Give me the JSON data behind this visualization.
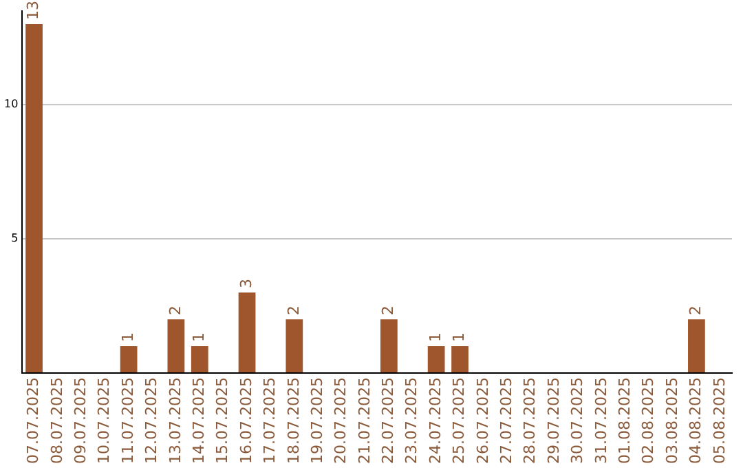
{
  "chart_data": {
    "type": "bar",
    "categories": [
      "07.07.2025",
      "08.07.2025",
      "09.07.2025",
      "10.07.2025",
      "11.07.2025",
      "12.07.2025",
      "13.07.2025",
      "14.07.2025",
      "15.07.2025",
      "16.07.2025",
      "17.07.2025",
      "18.07.2025",
      "19.07.2025",
      "20.07.2025",
      "21.07.2025",
      "22.07.2025",
      "23.07.2025",
      "24.07.2025",
      "25.07.2025",
      "26.07.2025",
      "27.07.2025",
      "28.07.2025",
      "29.07.2025",
      "30.07.2025",
      "31.07.2025",
      "01.08.2025",
      "02.08.2025",
      "03.08.2025",
      "04.08.2025",
      "05.08.2025"
    ],
    "values": [
      13,
      null,
      null,
      null,
      1,
      null,
      2,
      1,
      null,
      3,
      null,
      2,
      null,
      null,
      null,
      2,
      null,
      1,
      1,
      null,
      null,
      null,
      null,
      null,
      null,
      null,
      null,
      null,
      2,
      null
    ],
    "color": "#a0562c",
    "ylim": [
      0,
      13.5
    ],
    "yticks": [
      {
        "value": 0,
        "label": null
      },
      5,
      10
    ],
    "grid": "y",
    "data_labels": true,
    "legend": false
  }
}
